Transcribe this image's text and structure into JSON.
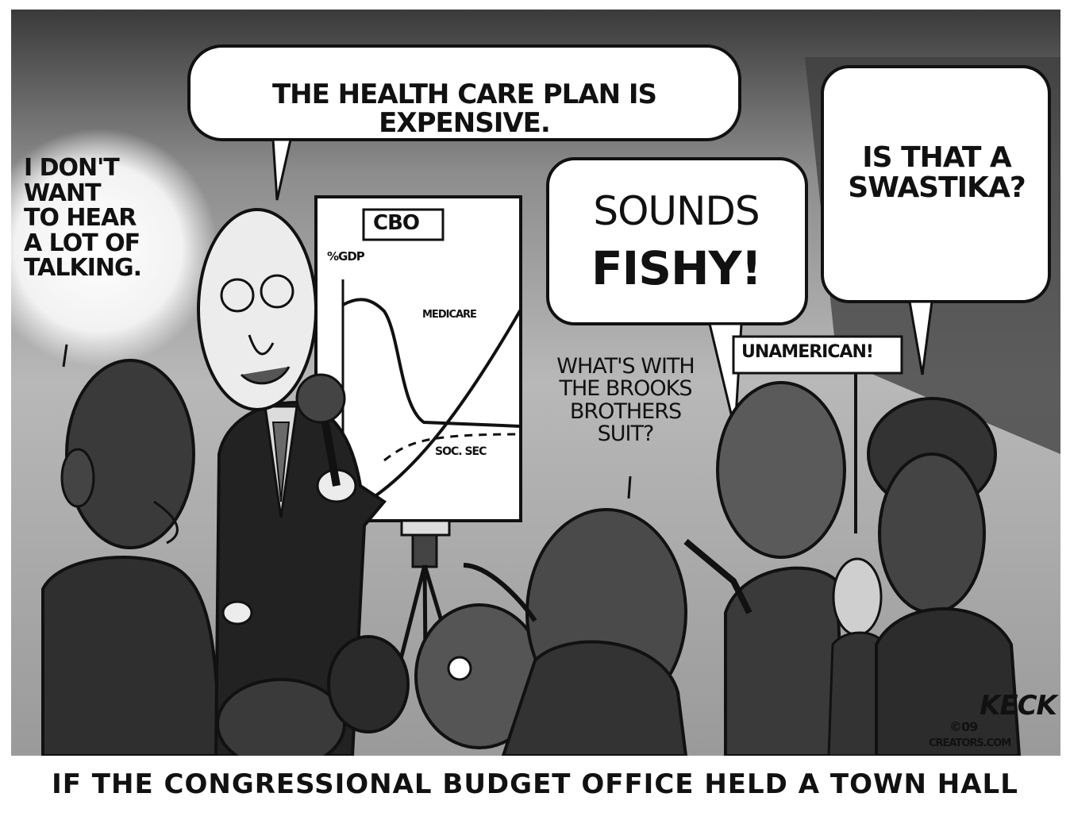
{
  "cartoon": {
    "bubbles": {
      "presenter": "THE HEALTH CARE PLAN IS EXPENSIVE.",
      "left_figure": "I DON'T\nWANT\nTO HEAR\nA LOT OF\nTALKING.",
      "woman_right": "IS THAT A\nSWASTIKA?",
      "sounds": "SOUNDS",
      "fishy": "FISHY!",
      "brooks": "WHAT'S WITH\nTHE BROOKS\nBROTHERS\nSUIT?"
    },
    "sign_text": "UNAMERICAN!",
    "chart": {
      "title": "CBO",
      "ylabel": "%GDP",
      "label_medicare": "MEDICARE",
      "label_socsec": "SOC. SEC"
    },
    "signature": {
      "name": "KECK",
      "copyright": "©09",
      "site": "CREATORS.COM"
    },
    "caption": "IF THE CONGRESSIONAL BUDGET OFFICE HELD A TOWN HALL"
  },
  "colors": {
    "dark": "#2b2b2b",
    "mid": "#6a6a6a",
    "light": "#bcbcbc",
    "paper": "#ffffff"
  }
}
